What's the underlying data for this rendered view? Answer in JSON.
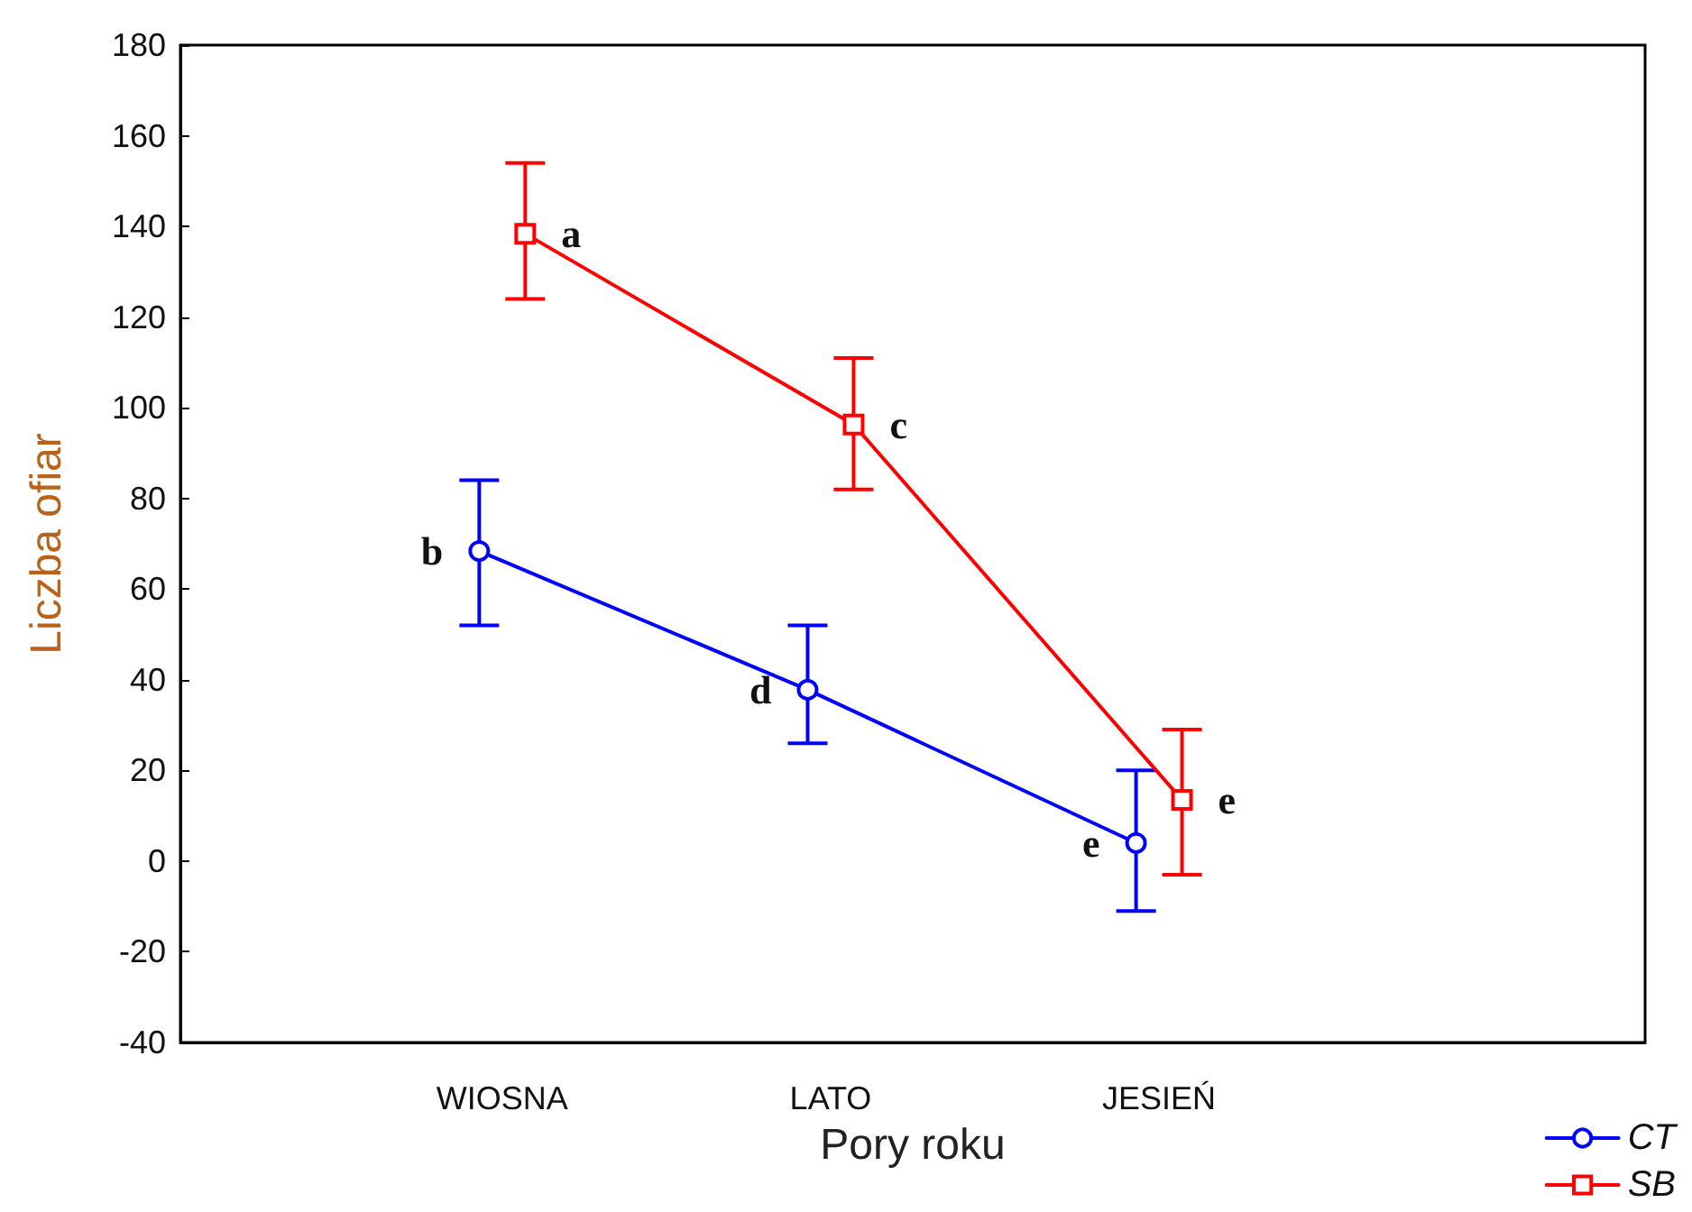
{
  "chart_data": {
    "type": "line",
    "xlabel": "Pory roku",
    "ylabel": "Liczba ofiar",
    "categories": [
      "WIOSNA",
      "LATO",
      "JESIEŃ"
    ],
    "series": [
      {
        "name": "CT",
        "color": "#0000ff",
        "marker": "circle",
        "values": [
          68.4,
          37.8,
          4
        ],
        "errors": [
          [
            52,
            84
          ],
          [
            26,
            52
          ],
          [
            -11,
            20
          ]
        ],
        "value_labels": [
          "b",
          "d",
          "e"
        ]
      },
      {
        "name": "SB",
        "color": "#ff0000",
        "marker": "square",
        "values": [
          138.4,
          96.3,
          13.5
        ],
        "errors": [
          [
            124,
            154
          ],
          [
            82,
            111
          ],
          [
            -3,
            29
          ]
        ],
        "value_labels": [
          "a",
          "c",
          "e"
        ]
      }
    ],
    "ylim": [
      -40,
      180
    ],
    "yticks": [
      -40,
      -20,
      0,
      20,
      40,
      60,
      80,
      100,
      120,
      140,
      160,
      180
    ],
    "grid": false,
    "legend": "bottom right",
    "line_style": "solid"
  }
}
